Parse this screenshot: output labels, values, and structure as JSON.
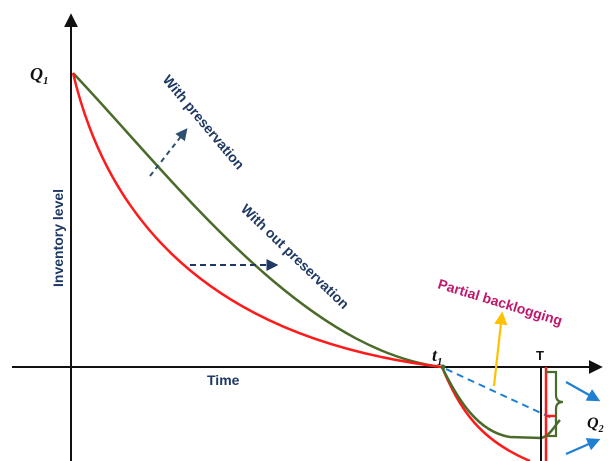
{
  "labels": {
    "q1": "Q",
    "q1_sub": "1",
    "q2": "Q",
    "q2_sub": "2",
    "t1": "t",
    "t1_sub": "1",
    "T": "T",
    "y_axis": "Inventory level",
    "x_axis": "Time",
    "with_preservation": "With preservation",
    "without_preservation": "With out preservation",
    "partial_backlogging": "Partial backlogging"
  },
  "colors": {
    "with_preservation_curve": "#4a6b2a",
    "without_preservation_curve": "#ff1a1a",
    "axis": "#111111",
    "annotation_text": "#1f3864",
    "arrow_dashed": "#2f4f6f",
    "backlog_text": "#c0186c",
    "backlog_arrow": "#ffc000",
    "q2_arrows": "#1f7fd0",
    "dashed_blue": "#1f7fd0"
  }
}
